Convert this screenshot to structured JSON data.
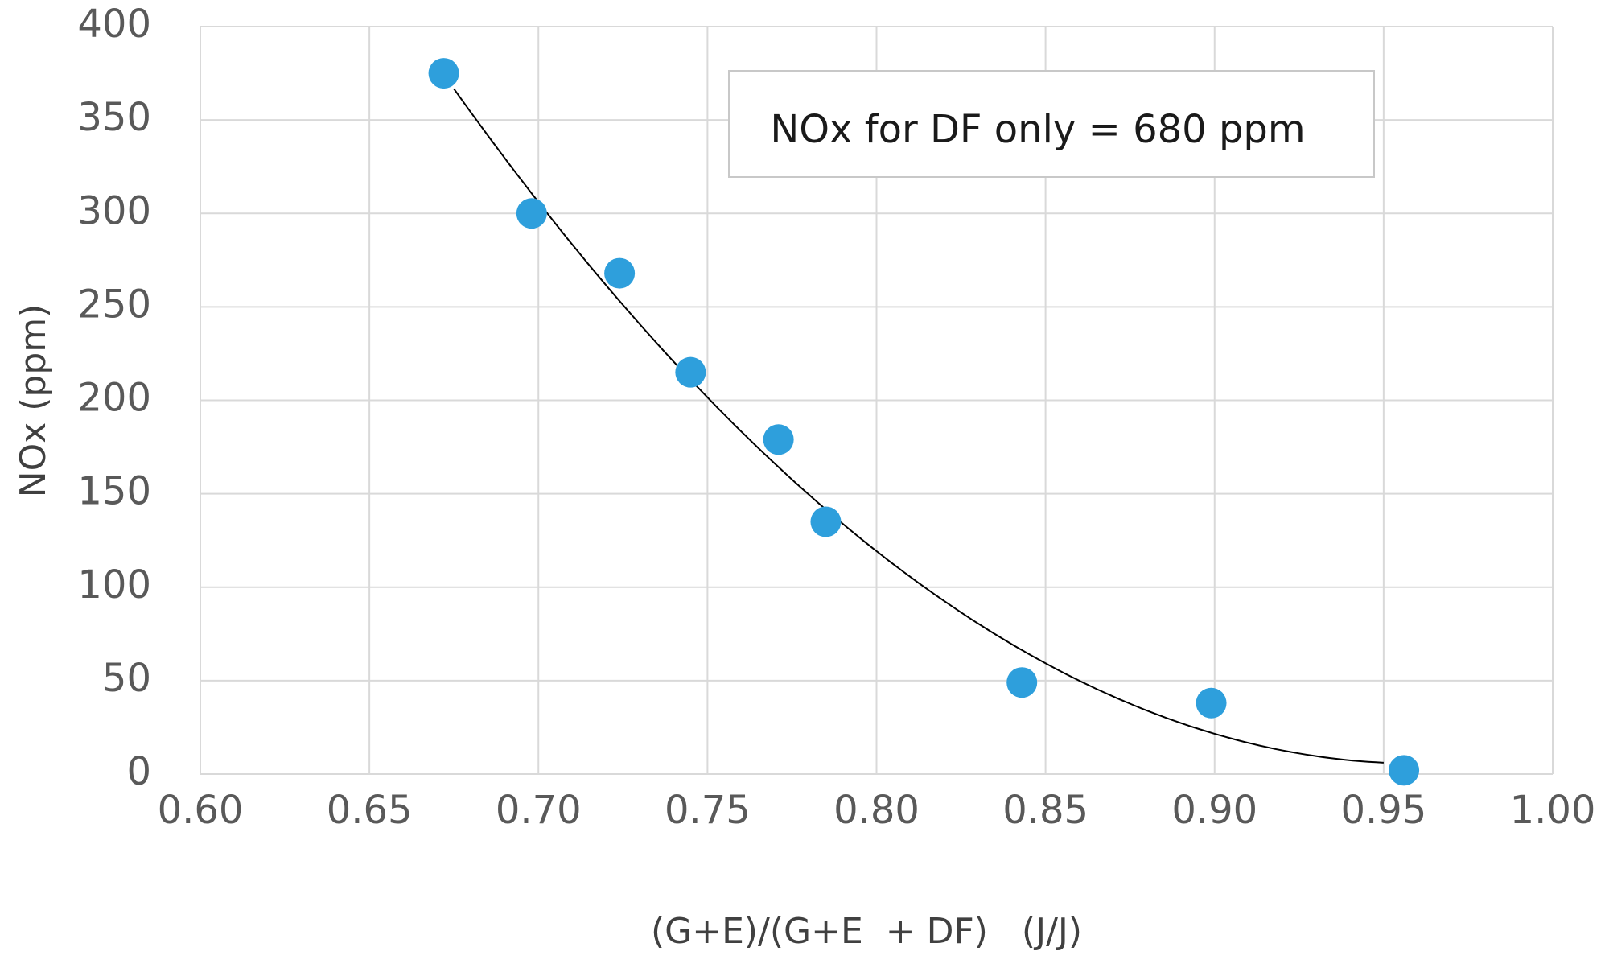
{
  "chart_data": {
    "type": "scatter",
    "title": "",
    "xlabel": "(G+E)/(G+E  + DF)   (J/J)",
    "ylabel": "NOx (ppm)",
    "xlim": [
      0.6,
      1.0
    ],
    "ylim": [
      0,
      400
    ],
    "x_ticks": [
      "0.60",
      "0.65",
      "0.70",
      "0.75",
      "0.80",
      "0.85",
      "0.90",
      "0.95",
      "1.00"
    ],
    "y_ticks": [
      "0",
      "50",
      "100",
      "150",
      "200",
      "250",
      "300",
      "350",
      "400"
    ],
    "grid": true,
    "series": [
      {
        "name": "NOx",
        "color": "#2e9fdc",
        "x": [
          0.672,
          0.698,
          0.724,
          0.745,
          0.771,
          0.785,
          0.843,
          0.899,
          0.956
        ],
        "y": [
          375,
          300,
          268,
          215,
          179,
          135,
          49,
          38,
          2
        ]
      }
    ],
    "trendline": {
      "type": "polynomial-2",
      "color": "#000000",
      "x_range": [
        0.675,
        0.95
      ],
      "points": [
        [
          0.675,
          372
        ],
        [
          0.7,
          300
        ],
        [
          0.75,
          200
        ],
        [
          0.8,
          120
        ],
        [
          0.85,
          62
        ],
        [
          0.95,
          5
        ]
      ]
    },
    "annotation": "NOx for DF only = 680 ppm"
  }
}
